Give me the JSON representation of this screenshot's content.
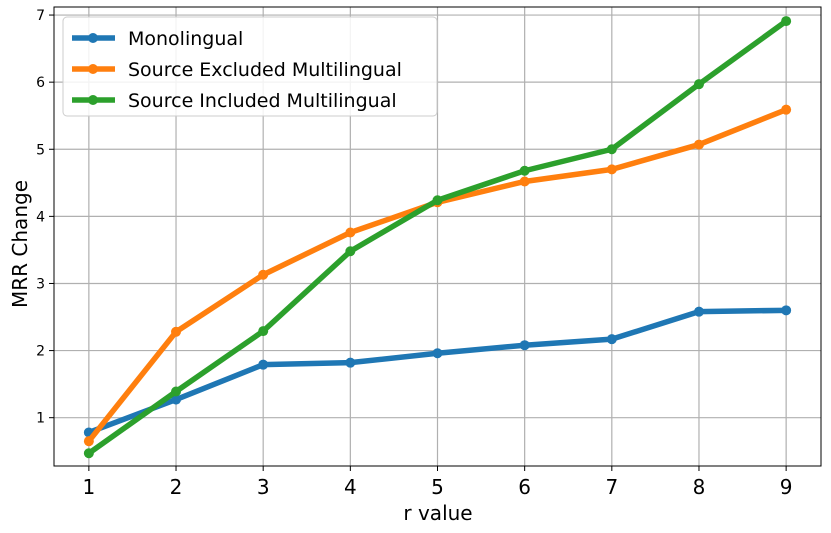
{
  "chart_data": {
    "type": "line",
    "title": "",
    "xlabel": "r value",
    "ylabel": "MRR Change",
    "x": [
      1,
      2,
      3,
      4,
      5,
      6,
      7,
      8,
      9
    ],
    "xticks": [
      "1",
      "2",
      "3",
      "4",
      "5",
      "6",
      "7",
      "8",
      "9"
    ],
    "yticks": [
      "1",
      "2",
      "3",
      "4",
      "5",
      "6",
      "7"
    ],
    "xlim": [
      0.6,
      9.4
    ],
    "ylim": [
      0.28,
      7.12
    ],
    "grid": true,
    "legend_position": "top-left",
    "series": [
      {
        "name": "Monolingual",
        "color": "#1f77b4",
        "values": [
          0.78,
          1.27,
          1.79,
          1.82,
          1.96,
          2.08,
          2.17,
          2.58,
          2.6
        ]
      },
      {
        "name": "Source Excluded Multilingual",
        "color": "#ff7f0e",
        "values": [
          0.65,
          2.28,
          3.13,
          3.76,
          4.21,
          4.52,
          4.7,
          5.07,
          5.59
        ]
      },
      {
        "name": "Source Included Multilingual",
        "color": "#2ca02c",
        "values": [
          0.47,
          1.39,
          2.29,
          3.48,
          4.24,
          4.68,
          5.0,
          5.97,
          6.91
        ]
      }
    ]
  }
}
